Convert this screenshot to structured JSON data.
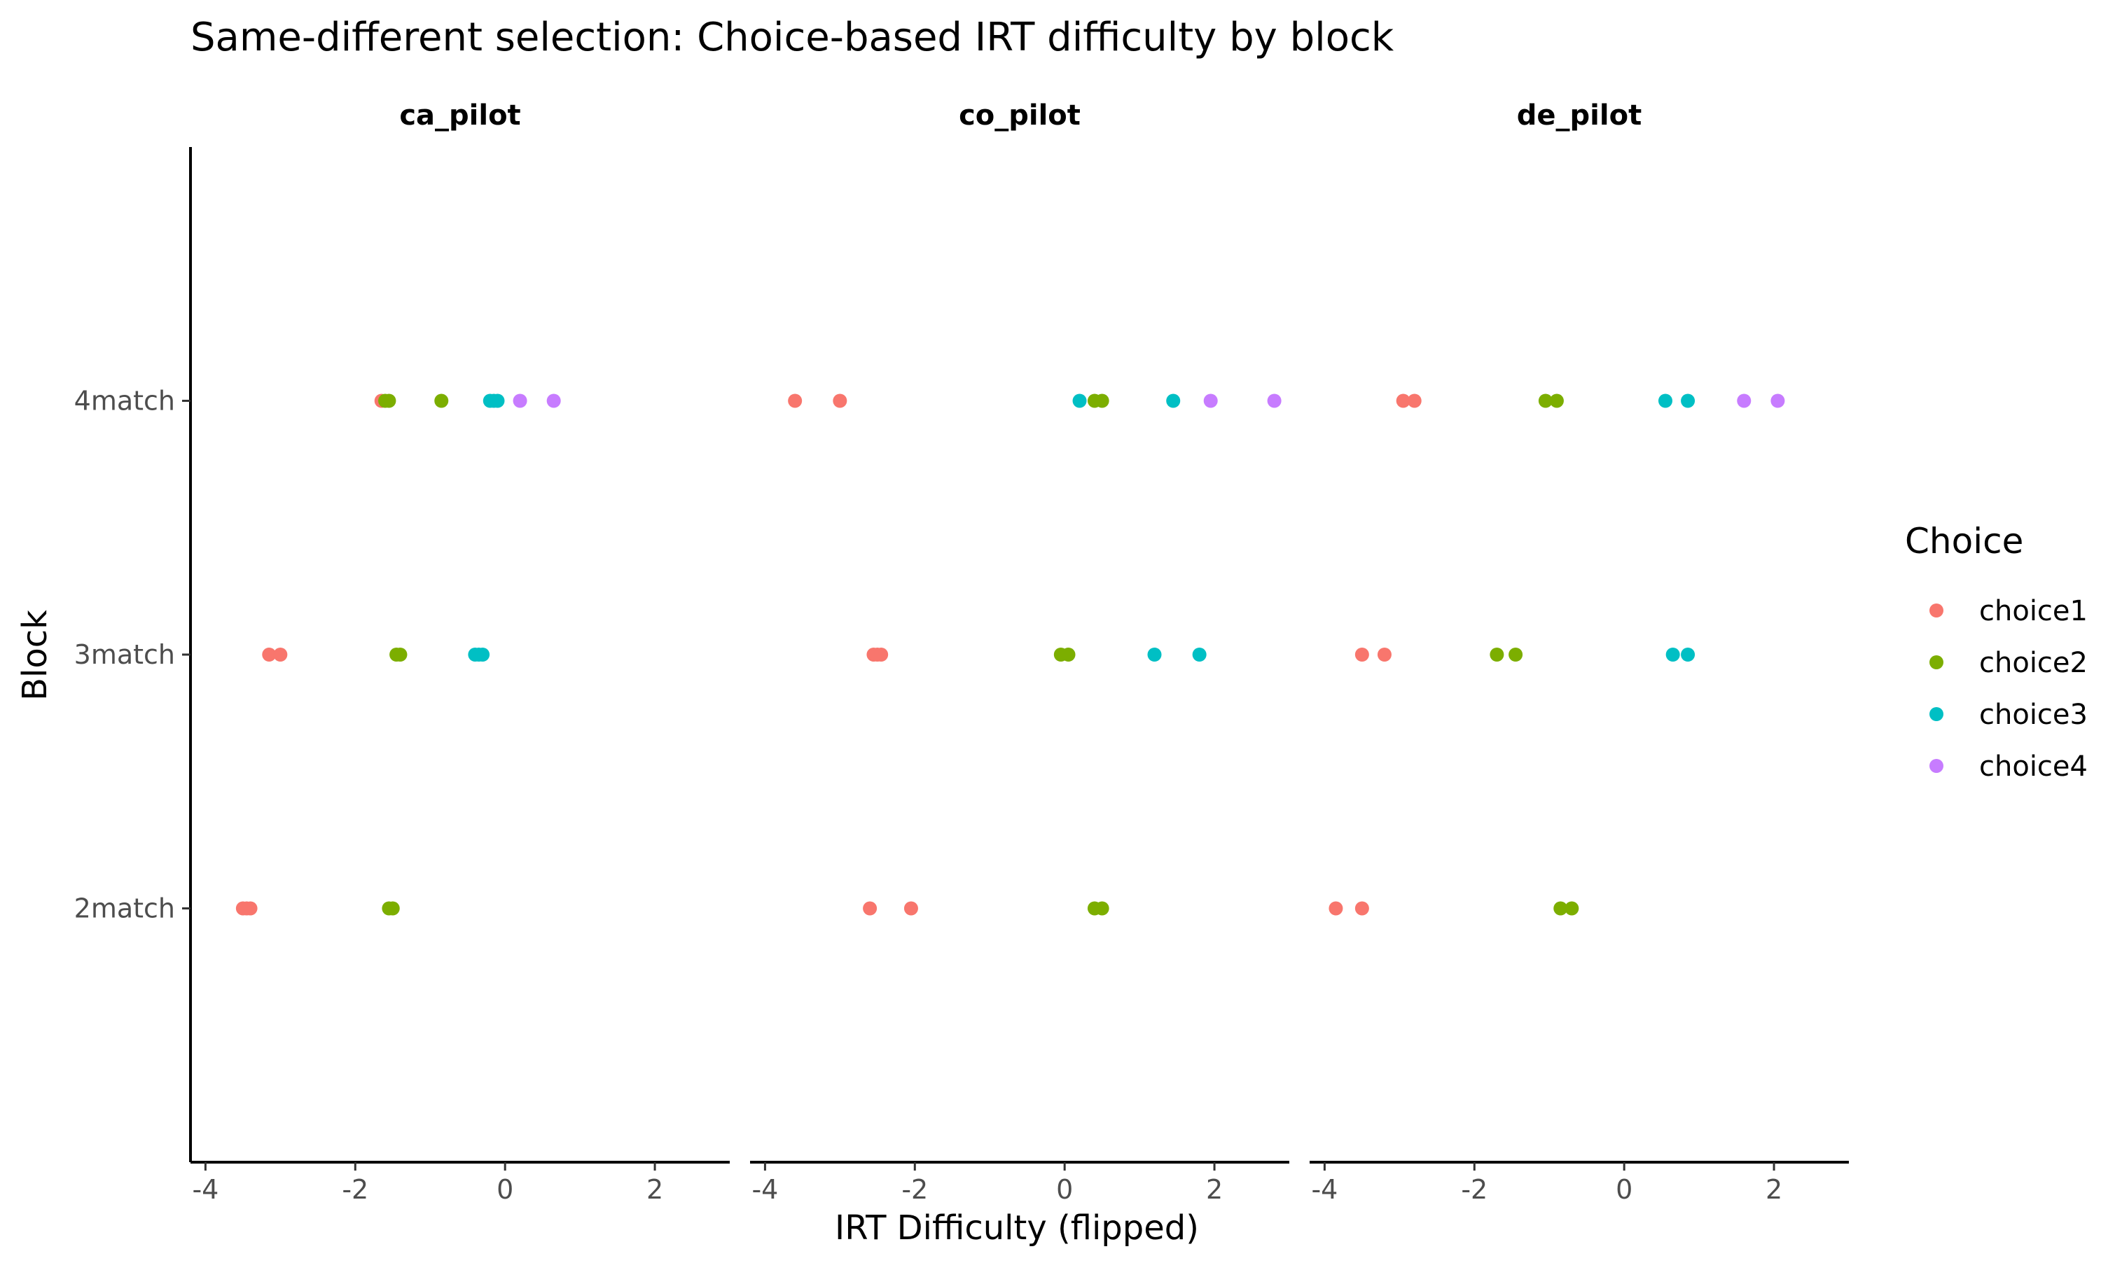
{
  "chart_data": {
    "type": "scatter",
    "title": "Same-different selection: Choice-based IRT difficulty by block",
    "xlabel": "IRT Difficulty (flipped)",
    "ylabel": "Block",
    "xlim": [
      -4.2,
      3.0
    ],
    "x_ticks": [
      -4,
      -2,
      0,
      2
    ],
    "x_tick_labels": [
      "-4",
      "-2",
      "0",
      "2"
    ],
    "categories": [
      "2match",
      "3match",
      "4match"
    ],
    "grid": false,
    "legend": {
      "title": "Choice",
      "position": "right",
      "entries": [
        {
          "name": "choice1",
          "color": "#F8766D"
        },
        {
          "name": "choice2",
          "color": "#7CAE00"
        },
        {
          "name": "choice3",
          "color": "#00BFC4"
        },
        {
          "name": "choice4",
          "color": "#C77CFF"
        }
      ]
    },
    "panels": [
      {
        "name": "ca_pilot",
        "points": [
          {
            "block": "4match",
            "choice": "choice1",
            "x": -1.65
          },
          {
            "block": "4match",
            "choice": "choice2",
            "x": -1.6
          },
          {
            "block": "4match",
            "choice": "choice2",
            "x": -1.55
          },
          {
            "block": "4match",
            "choice": "choice2",
            "x": -0.85
          },
          {
            "block": "4match",
            "choice": "choice3",
            "x": -0.2
          },
          {
            "block": "4match",
            "choice": "choice3",
            "x": -0.15
          },
          {
            "block": "4match",
            "choice": "choice3",
            "x": -0.1
          },
          {
            "block": "4match",
            "choice": "choice4",
            "x": 0.2
          },
          {
            "block": "4match",
            "choice": "choice4",
            "x": 0.65
          },
          {
            "block": "3match",
            "choice": "choice1",
            "x": -3.15
          },
          {
            "block": "3match",
            "choice": "choice1",
            "x": -3.0
          },
          {
            "block": "3match",
            "choice": "choice2",
            "x": -1.45
          },
          {
            "block": "3match",
            "choice": "choice2",
            "x": -1.4
          },
          {
            "block": "3match",
            "choice": "choice3",
            "x": -0.4
          },
          {
            "block": "3match",
            "choice": "choice3",
            "x": -0.35
          },
          {
            "block": "3match",
            "choice": "choice3",
            "x": -0.3
          },
          {
            "block": "2match",
            "choice": "choice1",
            "x": -3.5
          },
          {
            "block": "2match",
            "choice": "choice1",
            "x": -3.45
          },
          {
            "block": "2match",
            "choice": "choice1",
            "x": -3.4
          },
          {
            "block": "2match",
            "choice": "choice2",
            "x": -1.55
          },
          {
            "block": "2match",
            "choice": "choice2",
            "x": -1.5
          }
        ]
      },
      {
        "name": "co_pilot",
        "points": [
          {
            "block": "4match",
            "choice": "choice1",
            "x": -3.6
          },
          {
            "block": "4match",
            "choice": "choice1",
            "x": -3.0
          },
          {
            "block": "4match",
            "choice": "choice3",
            "x": 0.2
          },
          {
            "block": "4match",
            "choice": "choice2",
            "x": 0.4
          },
          {
            "block": "4match",
            "choice": "choice2",
            "x": 0.5
          },
          {
            "block": "4match",
            "choice": "choice3",
            "x": 1.45
          },
          {
            "block": "4match",
            "choice": "choice4",
            "x": 1.95
          },
          {
            "block": "4match",
            "choice": "choice4",
            "x": 2.8
          },
          {
            "block": "3match",
            "choice": "choice1",
            "x": -2.55
          },
          {
            "block": "3match",
            "choice": "choice1",
            "x": -2.5
          },
          {
            "block": "3match",
            "choice": "choice1",
            "x": -2.45
          },
          {
            "block": "3match",
            "choice": "choice2",
            "x": -0.05
          },
          {
            "block": "3match",
            "choice": "choice2",
            "x": 0.05
          },
          {
            "block": "3match",
            "choice": "choice3",
            "x": 1.2
          },
          {
            "block": "3match",
            "choice": "choice3",
            "x": 1.8
          },
          {
            "block": "2match",
            "choice": "choice1",
            "x": -2.6
          },
          {
            "block": "2match",
            "choice": "choice1",
            "x": -2.05
          },
          {
            "block": "2match",
            "choice": "choice2",
            "x": 0.4
          },
          {
            "block": "2match",
            "choice": "choice2",
            "x": 0.5
          }
        ]
      },
      {
        "name": "de_pilot",
        "points": [
          {
            "block": "4match",
            "choice": "choice1",
            "x": -2.95
          },
          {
            "block": "4match",
            "choice": "choice1",
            "x": -2.8
          },
          {
            "block": "4match",
            "choice": "choice2",
            "x": -1.05
          },
          {
            "block": "4match",
            "choice": "choice2",
            "x": -0.9
          },
          {
            "block": "4match",
            "choice": "choice3",
            "x": 0.55
          },
          {
            "block": "4match",
            "choice": "choice3",
            "x": 0.85
          },
          {
            "block": "4match",
            "choice": "choice4",
            "x": 1.6
          },
          {
            "block": "4match",
            "choice": "choice4",
            "x": 2.05
          },
          {
            "block": "3match",
            "choice": "choice1",
            "x": -3.5
          },
          {
            "block": "3match",
            "choice": "choice1",
            "x": -3.2
          },
          {
            "block": "3match",
            "choice": "choice2",
            "x": -1.7
          },
          {
            "block": "3match",
            "choice": "choice2",
            "x": -1.45
          },
          {
            "block": "3match",
            "choice": "choice3",
            "x": 0.65
          },
          {
            "block": "3match",
            "choice": "choice3",
            "x": 0.85
          },
          {
            "block": "2match",
            "choice": "choice1",
            "x": -3.85
          },
          {
            "block": "2match",
            "choice": "choice1",
            "x": -3.5
          },
          {
            "block": "2match",
            "choice": "choice2",
            "x": -0.85
          },
          {
            "block": "2match",
            "choice": "choice2",
            "x": -0.7
          }
        ]
      }
    ]
  }
}
